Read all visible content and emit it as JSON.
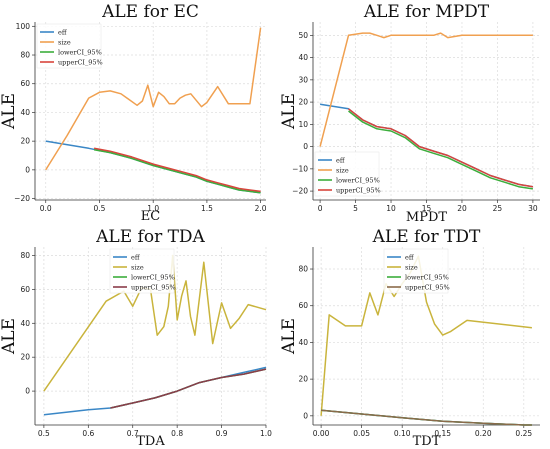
{
  "chart_data": [
    {
      "type": "line",
      "title": "ALE for EC",
      "xlabel": "EC",
      "ylabel": "ALE",
      "xlim": [
        -0.1,
        2.05
      ],
      "ylim": [
        -21,
        103
      ],
      "xticks": [
        0.0,
        0.5,
        1.0,
        1.5,
        2.0
      ],
      "xtick_labels": [
        "0.0",
        "0.5",
        "1.0",
        "1.5",
        "2.0"
      ],
      "yticks": [
        -20,
        0,
        20,
        40,
        60,
        80,
        100
      ],
      "ytick_labels": [
        "−20",
        "0",
        "20",
        "40",
        "60",
        "80",
        "100"
      ],
      "legend_position": "top-left",
      "series": [
        {
          "name": "eff",
          "color": "#3a87c6",
          "x": [
            0.0,
            0.4,
            0.6,
            0.8,
            1.0,
            1.2,
            1.3,
            1.4,
            1.5,
            1.6,
            1.7,
            1.8,
            1.9,
            2.0
          ],
          "y": [
            20,
            15,
            12,
            8,
            3,
            -1,
            -3,
            -5,
            -8,
            -10,
            -12,
            -14,
            -15,
            -16
          ]
        },
        {
          "name": "size",
          "color": "#f0a050",
          "x": [
            0.0,
            0.2,
            0.4,
            0.5,
            0.6,
            0.7,
            0.85,
            0.9,
            0.95,
            1.0,
            1.05,
            1.1,
            1.15,
            1.2,
            1.25,
            1.3,
            1.35,
            1.45,
            1.5,
            1.6,
            1.7,
            1.8,
            1.9,
            2.0
          ],
          "y": [
            0,
            24,
            50,
            54,
            55,
            53,
            45,
            48,
            59,
            44,
            54,
            51,
            46,
            46,
            50,
            52,
            53,
            44,
            47,
            58,
            46,
            46,
            46,
            99
          ]
        },
        {
          "name": "lowerCI_95%",
          "color": "#3cae3c",
          "x": [
            0.45,
            0.6,
            0.8,
            1.0,
            1.2,
            1.3,
            1.4,
            1.5,
            1.6,
            1.7,
            1.8,
            1.9,
            2.0
          ],
          "y": [
            14,
            12,
            8,
            3,
            -1,
            -3,
            -5,
            -8,
            -10,
            -12,
            -14,
            -15,
            -16
          ]
        },
        {
          "name": "upperCI_95%",
          "color": "#d8453c",
          "x": [
            0.45,
            0.6,
            0.8,
            1.0,
            1.2,
            1.3,
            1.4,
            1.5,
            1.6,
            1.7,
            1.8,
            1.9,
            2.0
          ],
          "y": [
            15,
            13,
            9,
            4,
            0,
            -2,
            -4,
            -7,
            -9,
            -11,
            -13,
            -14,
            -15
          ]
        }
      ]
    },
    {
      "type": "line",
      "title": "ALE for MPDT",
      "xlabel": "MPDT",
      "ylabel": "ALE",
      "xlim": [
        -1,
        31
      ],
      "ylim": [
        -24,
        56
      ],
      "xticks": [
        0,
        5,
        10,
        15,
        20,
        25,
        30
      ],
      "xtick_labels": [
        "0",
        "5",
        "10",
        "15",
        "20",
        "25",
        "30"
      ],
      "yticks": [
        -20,
        -10,
        0,
        10,
        20,
        30,
        40,
        50
      ],
      "ytick_labels": [
        "−20",
        "−10",
        "0",
        "10",
        "20",
        "30",
        "40",
        "50"
      ],
      "legend_position": "bottom-left",
      "series": [
        {
          "name": "eff",
          "color": "#3a87c6",
          "x": [
            0,
            4,
            6,
            8,
            10,
            12,
            14,
            16,
            18,
            20,
            22,
            24,
            26,
            28,
            30
          ],
          "y": [
            19,
            17,
            12,
            9,
            8,
            5,
            0,
            -2,
            -4,
            -7,
            -10,
            -13,
            -15,
            -17,
            -18
          ]
        },
        {
          "name": "size",
          "color": "#f0a050",
          "x": [
            0,
            4,
            6,
            7,
            8,
            9,
            10,
            12,
            14,
            16,
            17,
            18,
            20,
            24,
            28,
            30
          ],
          "y": [
            0,
            50,
            51,
            51,
            50,
            49,
            50,
            50,
            50,
            50,
            51,
            49,
            50,
            50,
            50,
            50
          ]
        },
        {
          "name": "lowerCI_95%",
          "color": "#3cae3c",
          "x": [
            4,
            6,
            8,
            10,
            12,
            14,
            16,
            18,
            20,
            22,
            24,
            26,
            28,
            30
          ],
          "y": [
            16,
            11,
            8,
            7,
            4,
            -1,
            -3,
            -5,
            -8,
            -11,
            -14,
            -16,
            -18,
            -19
          ]
        },
        {
          "name": "upperCI_95%",
          "color": "#d8453c",
          "x": [
            4,
            6,
            8,
            10,
            12,
            14,
            16,
            18,
            20,
            22,
            24,
            26,
            28,
            30
          ],
          "y": [
            17,
            12,
            9,
            8,
            5,
            0,
            -2,
            -4,
            -7,
            -10,
            -13,
            -15,
            -17,
            -18
          ]
        }
      ]
    },
    {
      "type": "line",
      "title": "ALE for TDA",
      "xlabel": "TDA",
      "ylabel": "ALE",
      "xlim": [
        0.48,
        1.0
      ],
      "ylim": [
        -20,
        85
      ],
      "xticks": [
        0.5,
        0.6,
        0.7,
        0.8,
        0.9,
        1.0
      ],
      "xtick_labels": [
        "0.5",
        "0.6",
        "0.7",
        "0.8",
        "0.9",
        "1.0"
      ],
      "yticks": [
        0,
        20,
        40,
        60,
        80
      ],
      "ytick_labels": [
        "0",
        "20",
        "40",
        "60",
        "80"
      ],
      "legend_position": "top-right",
      "series": [
        {
          "name": "eff",
          "color": "#3a87c6",
          "x": [
            0.5,
            0.6,
            0.65,
            0.7,
            0.75,
            0.8,
            0.85,
            0.9,
            0.95,
            1.0
          ],
          "y": [
            -14,
            -11,
            -10,
            -7,
            -4,
            0,
            5,
            8,
            11,
            14
          ]
        },
        {
          "name": "size",
          "color": "#c9b43c",
          "x": [
            0.5,
            0.64,
            0.68,
            0.7,
            0.72,
            0.74,
            0.755,
            0.77,
            0.78,
            0.79,
            0.8,
            0.81,
            0.82,
            0.83,
            0.84,
            0.86,
            0.88,
            0.9,
            0.92,
            0.94,
            0.96,
            1.0
          ],
          "y": [
            0,
            53,
            59,
            50,
            61,
            60,
            33,
            38,
            50,
            80,
            42,
            56,
            65,
            44,
            33,
            76,
            28,
            52,
            37,
            43,
            51,
            48
          ]
        },
        {
          "name": "lowerCI_95%",
          "color": "#3cae3c",
          "x": [
            0.65,
            0.7,
            0.75,
            0.8,
            0.85,
            0.9,
            0.95,
            1.0
          ],
          "y": [
            -10,
            -7,
            -4,
            0,
            5,
            8,
            10,
            13
          ]
        },
        {
          "name": "upperCI_95%",
          "color": "#8b3c4a",
          "x": [
            0.65,
            0.7,
            0.75,
            0.8,
            0.85,
            0.9,
            0.95,
            1.0
          ],
          "y": [
            -10,
            -7,
            -4,
            0,
            5,
            8,
            10,
            13
          ]
        }
      ]
    },
    {
      "type": "line",
      "title": "ALE for TDT",
      "xlabel": "TDT",
      "ylabel": "ALE",
      "xlim": [
        -0.01,
        0.27
      ],
      "ylim": [
        -5,
        92
      ],
      "xticks": [
        0.0,
        0.05,
        0.1,
        0.15,
        0.2,
        0.25
      ],
      "xtick_labels": [
        "0.00",
        "0.05",
        "0.10",
        "0.15",
        "0.20",
        "0.25"
      ],
      "yticks": [
        0,
        20,
        40,
        60,
        80
      ],
      "ytick_labels": [
        "0",
        "20",
        "40",
        "60",
        "80"
      ],
      "legend_position": "top-right",
      "series": [
        {
          "name": "eff",
          "color": "#3a87c6",
          "x": [
            0.0,
            0.05,
            0.1,
            0.15,
            0.2,
            0.25,
            0.26
          ],
          "y": [
            3,
            1,
            -1,
            -3,
            -4,
            -5,
            -5
          ]
        },
        {
          "name": "size",
          "color": "#c9b43c",
          "x": [
            0.0,
            0.01,
            0.02,
            0.03,
            0.05,
            0.06,
            0.07,
            0.08,
            0.09,
            0.1,
            0.11,
            0.12,
            0.13,
            0.14,
            0.15,
            0.16,
            0.18,
            0.26
          ],
          "y": [
            0,
            55,
            52,
            49,
            49,
            67,
            55,
            72,
            65,
            72,
            78,
            87,
            62,
            50,
            44,
            46,
            52,
            48
          ]
        },
        {
          "name": "lowerCI_95%",
          "color": "#3cae3c",
          "x": [
            0.0,
            0.05,
            0.1,
            0.15,
            0.2,
            0.25,
            0.26
          ],
          "y": [
            3,
            1,
            -1,
            -3,
            -4,
            -5,
            -5
          ]
        },
        {
          "name": "upperCI_95%",
          "color": "#8b6a4a",
          "x": [
            0.0,
            0.05,
            0.1,
            0.15,
            0.2,
            0.25,
            0.26
          ],
          "y": [
            3,
            1,
            -1,
            -3,
            -4,
            -5,
            -5
          ]
        }
      ]
    }
  ]
}
